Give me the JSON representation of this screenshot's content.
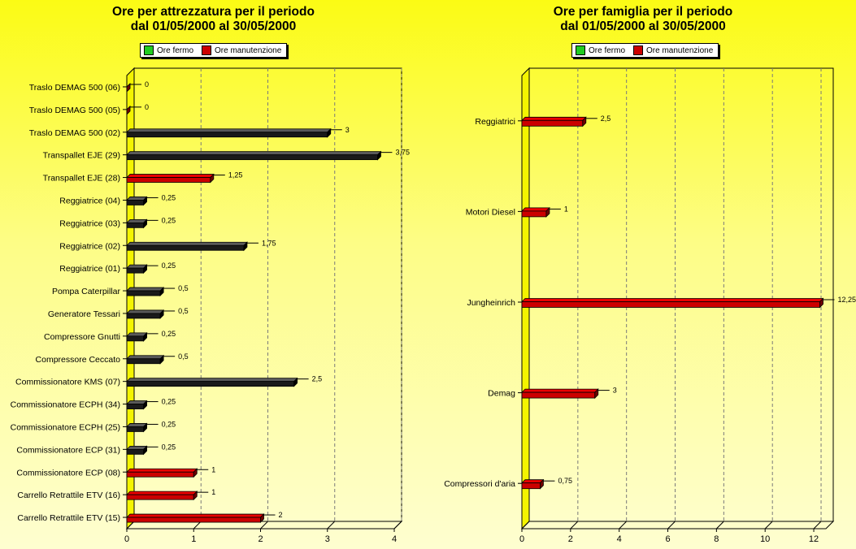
{
  "colors": {
    "fermo": "#22cc22",
    "manutenzione": "#cc0000",
    "dark": "#1a1a1a"
  },
  "chart_data": [
    {
      "type": "bar",
      "orientation": "horizontal",
      "title_line1": "Ore per attrezzatura per il periodo",
      "title_line2": "dal 01/05/2000 al 30/05/2000",
      "legend": [
        "Ore fermo",
        "Ore manutenzione"
      ],
      "legend_placement": "top",
      "xlim": [
        0,
        4
      ],
      "xticks": [
        0,
        1,
        2,
        3,
        4
      ],
      "grid": true,
      "categories": [
        "Traslo DEMAG 500 (06)",
        "Traslo DEMAG 500 (05)",
        "Traslo DEMAG 500 (02)",
        "Transpallet EJE (29)",
        "Transpallet EJE (28)",
        "Reggiatrice (04)",
        "Reggiatrice (03)",
        "Reggiatrice (02)",
        "Reggiatrice (01)",
        "Pompa Caterpillar",
        "Generatore Tessari",
        "Compressore Gnutti",
        "Compressore Ceccato",
        "Commissionatore KMS (07)",
        "Commissionatore ECPH (34)",
        "Commissionatore ECPH (25)",
        "Commissionatore ECP (31)",
        "Commissionatore ECP (08)",
        "Carrello Retrattile ETV (16)",
        "Carrello Retrattile ETV (15)"
      ],
      "values": [
        0,
        0,
        3,
        3.75,
        1.25,
        0.25,
        0.25,
        1.75,
        0.25,
        0.5,
        0.5,
        0.25,
        0.5,
        2.5,
        0.25,
        0.25,
        0.25,
        1,
        1,
        2
      ],
      "value_labels": [
        "0",
        "0",
        "3",
        "3,75",
        "1,25",
        "0,25",
        "0,25",
        "1,75",
        "0,25",
        "0,5",
        "0,5",
        "0,25",
        "0,5",
        "2,5",
        "0,25",
        "0,25",
        "0,25",
        "1",
        "1",
        "2"
      ],
      "series_type": [
        "manutenzione",
        "manutenzione",
        "dark",
        "dark",
        "manutenzione",
        "dark",
        "dark",
        "dark",
        "dark",
        "dark",
        "dark",
        "dark",
        "dark",
        "dark",
        "dark",
        "dark",
        "dark",
        "manutenzione",
        "manutenzione",
        "manutenzione"
      ]
    },
    {
      "type": "bar",
      "orientation": "horizontal",
      "title_line1": "Ore per famiglia per il periodo",
      "title_line2": "dal 01/05/2000 al 30/05/2000",
      "legend": [
        "Ore fermo",
        "Ore manutenzione"
      ],
      "legend_placement": "top",
      "xlim": [
        0,
        12.5
      ],
      "xticks": [
        0,
        2,
        4,
        6,
        8,
        10,
        12
      ],
      "grid": true,
      "categories": [
        "Reggiatrici",
        "Motori Diesel",
        "Jungheinrich",
        "Demag",
        "Compressori d'aria"
      ],
      "values": [
        2.5,
        1,
        12.25,
        3,
        0.75
      ],
      "value_labels": [
        "2,5",
        "1",
        "12,25",
        "3",
        "0,75"
      ],
      "series_type": [
        "manutenzione",
        "manutenzione",
        "manutenzione",
        "manutenzione",
        "manutenzione"
      ]
    }
  ]
}
